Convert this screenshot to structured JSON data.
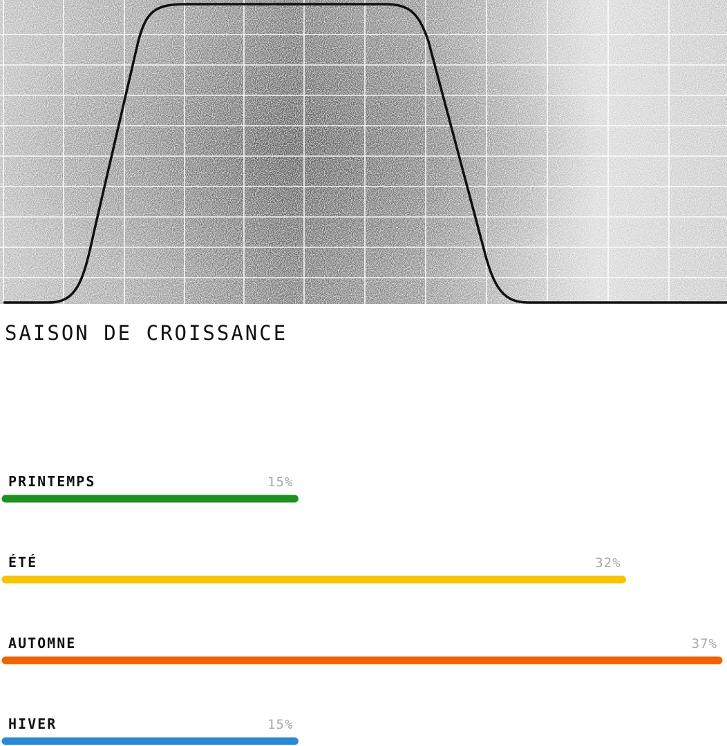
{
  "chart_data": {
    "type": "bar",
    "orientation": "horizontal",
    "title": "SAISON DE CROISSANCE",
    "categories": [
      "PRINTEMPS",
      "ÉTÉ",
      "AUTOMNE",
      "HIVER"
    ],
    "values": [
      15,
      32,
      37,
      15
    ],
    "value_labels": [
      "15%",
      "32%",
      "37%",
      "15%"
    ],
    "colors": [
      "#1f8f1f",
      "#f7c400",
      "#f06300",
      "#2b8ad8"
    ]
  }
}
